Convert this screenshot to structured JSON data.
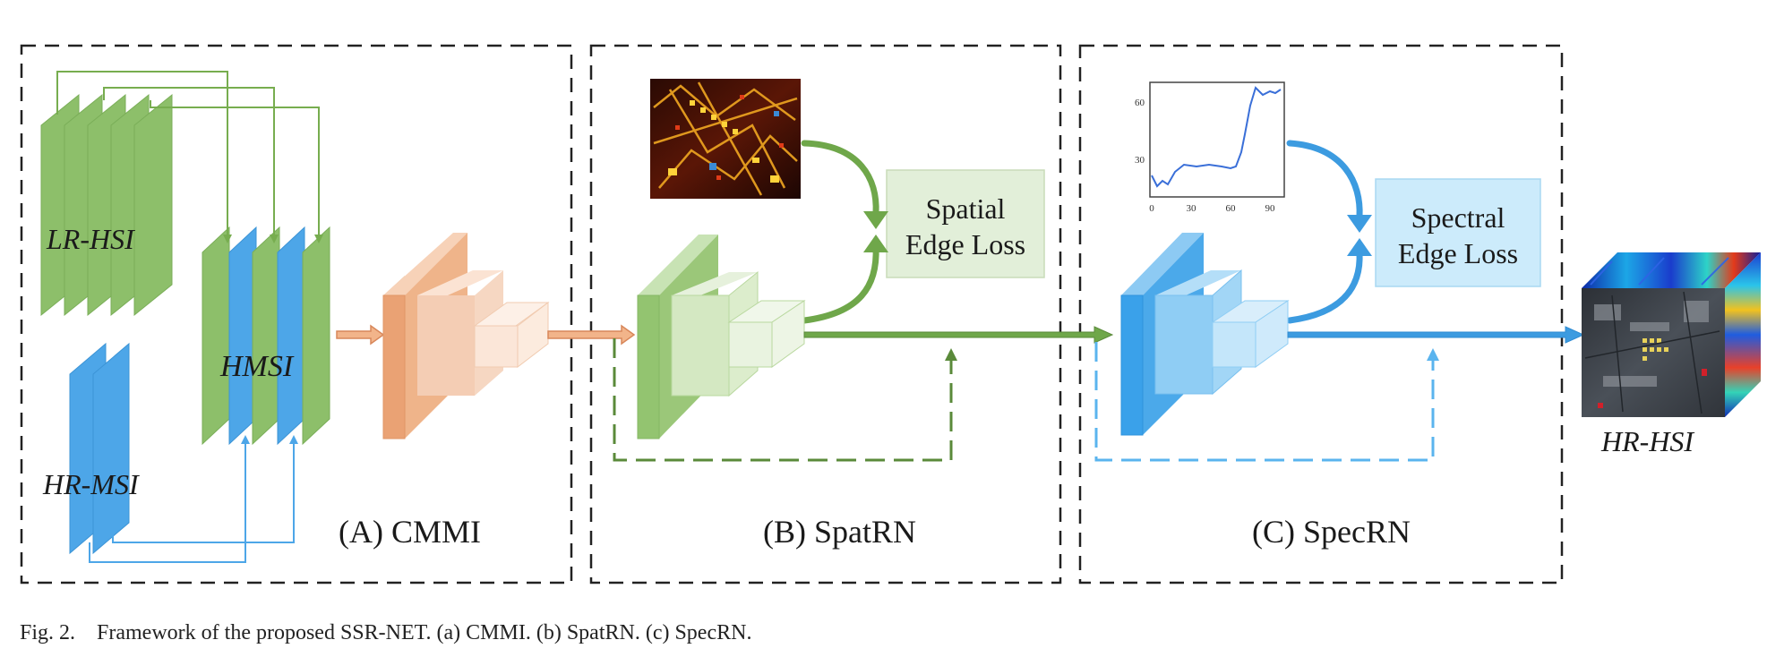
{
  "figure": {
    "caption": "Fig. 2.    Framework of the proposed SSR-NET. (a) CMMI. (b) SpatRN. (c) SpecRN.",
    "modules": {
      "cmmi": {
        "title": "(A) CMMI"
      },
      "spatrn": {
        "title": "(B) SpatRN",
        "loss_line1": "Spatial",
        "loss_line2": "Edge Loss"
      },
      "specrn": {
        "title": "(C) SpecRN",
        "loss_line1": "Spectral",
        "loss_line2": "Edge Loss"
      }
    },
    "inputs": {
      "lr_hsi": "LR-HSI",
      "hr_msi": "HR-MSI",
      "hmsi": "HMSI"
    },
    "output": {
      "hr_hsi": "HR-HSI"
    },
    "spectrum_plot": {
      "x_ticks": [
        "0",
        "30",
        "60",
        "90"
      ],
      "y_ticks": [
        "60",
        "30"
      ]
    },
    "colors": {
      "green": "#8dbf6a",
      "green_dark": "#5a8a3a",
      "blue": "#4da6e8",
      "orange": "#eda677",
      "dashed_frame": "#222222"
    }
  }
}
